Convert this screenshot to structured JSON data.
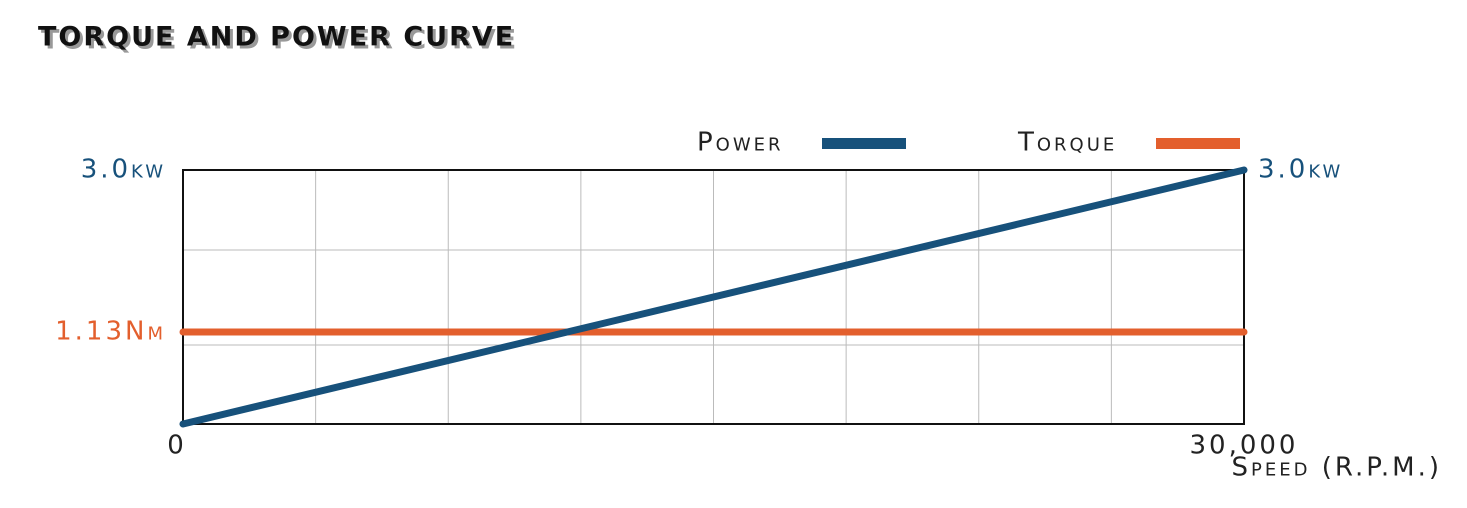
{
  "chart_data": {
    "type": "line",
    "title": "TORQUE AND POWER CURVE",
    "x": [
      0,
      30000
    ],
    "xlim": [
      0,
      30000
    ],
    "xticks": [
      0,
      {
        "value": 30000,
        "label": "30,000"
      }
    ],
    "xlabel": "Speed (R.P.M.)",
    "ylim": [
      0,
      3.0
    ],
    "yticks": [
      {
        "value": 3.0,
        "label": "3.0kw"
      }
    ],
    "y2lim": [
      0,
      3.12
    ],
    "y2ticks": [
      {
        "value": 1.13,
        "label": "1.13Nm"
      }
    ],
    "grid": true,
    "series": [
      {
        "name": "Power",
        "color": "#17517b",
        "values": [
          0,
          3.0
        ]
      },
      {
        "name": "Torque",
        "color": "#e35f2d",
        "values": [
          1.13,
          1.13
        ],
        "axis": "y2"
      }
    ]
  }
}
